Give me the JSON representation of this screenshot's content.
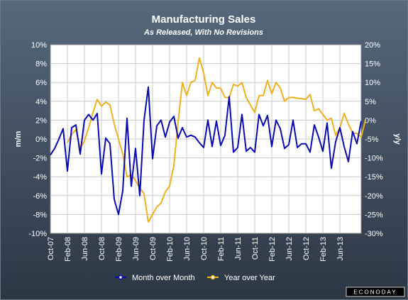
{
  "chart_data": {
    "type": "line",
    "title": "Manufacturing Sales",
    "subtitle": "As Released, With No Revisions",
    "ylabel_left": "m/m",
    "ylabel_right": "y/y",
    "x_tick_labels": [
      "Oct-07",
      "Feb-08",
      "Jun-08",
      "Oct-08",
      "Feb-09",
      "Jun-09",
      "Oct-09",
      "Feb-10",
      "Jun-10",
      "Oct-10",
      "Feb-11",
      "Jun-11",
      "Oct-11",
      "Feb-12",
      "Jun-12",
      "Oct-12",
      "Feb-13",
      "Jun-13"
    ],
    "y_left_ticks": [
      "10%",
      "8%",
      "6%",
      "4%",
      "2%",
      "0%",
      "-2%",
      "-4%",
      "-6%",
      "-8%",
      "-10%"
    ],
    "y_right_ticks": [
      "20%",
      "15%",
      "10%",
      "5%",
      "0%",
      "-5%",
      "-10%",
      "-15%",
      "-20%",
      "-25%",
      "-30%"
    ],
    "ylim_left": [
      -10,
      10
    ],
    "ylim_right": [
      -30,
      20
    ],
    "grid": true,
    "legend_position": "bottom",
    "x_start_month": "Oct-07",
    "series": [
      {
        "name": "Month over Month",
        "axis": "left",
        "color": "#0a0ab4",
        "start_index": 0,
        "values": [
          -1.7,
          -1.0,
          0.0,
          1.1,
          -3.4,
          1.2,
          1.5,
          -1.6,
          2.0,
          2.6,
          2.0,
          2.7,
          -3.7,
          0.1,
          -0.5,
          -6.4,
          -8.0,
          -5.5,
          2.2,
          -5.0,
          -1.0,
          -6.0,
          2.0,
          5.5,
          -2.1,
          1.4,
          2.0,
          0.2,
          1.8,
          2.4,
          0.1,
          1.2,
          0.2,
          0.4,
          0.2,
          -0.4,
          -0.9,
          2.0,
          -0.8,
          1.9,
          -0.7,
          0.4,
          4.5,
          -1.4,
          -0.9,
          2.6,
          -1.3,
          -0.9,
          -1.4,
          2.6,
          1.4,
          2.5,
          -0.8,
          2.0,
          1.1,
          -1.0,
          -0.6,
          2.0,
          -0.9,
          -0.5,
          -0.5,
          -1.4,
          1.5,
          0.2,
          -1.3,
          1.7,
          -3.1,
          -0.3,
          1.2,
          -0.8,
          -2.4,
          0.8,
          -0.5,
          1.9
        ]
      },
      {
        "name": "Year over Year",
        "axis": "right",
        "color": "#f0b020",
        "start_index": 4,
        "values": [
          -6.0,
          -3.8,
          -2.5,
          -7.5,
          -5.5,
          -2.0,
          2.0,
          5.5,
          3.7,
          4.8,
          4.0,
          -1.0,
          -5.0,
          -9.0,
          -15.0,
          -14.5,
          -16.0,
          -18.0,
          -19.5,
          -27.0,
          -25.0,
          -23.0,
          -22.0,
          -19.0,
          -17.5,
          -12.0,
          -0.5,
          10.0,
          6.5,
          10.0,
          10.5,
          16.5,
          12.5,
          6.5,
          10.0,
          8.5,
          8.5,
          6.0,
          6.0,
          9.5,
          9.0,
          10.0,
          6.0,
          4.0,
          2.0,
          6.5,
          6.5,
          10.5,
          7.0,
          10.0,
          8.5,
          5.0,
          6.0,
          6.0,
          5.8,
          5.7,
          5.5,
          6.8,
          2.5,
          3.0,
          1.5,
          0.0,
          0.5,
          -4.0,
          -2.0,
          1.8,
          -1.0,
          -3.5,
          -3.5,
          -4.5,
          0.0
        ]
      }
    ]
  },
  "legend": {
    "mom_label": "Month over Month",
    "yoy_label": "Year over Year"
  },
  "brand": "ECONODAY"
}
